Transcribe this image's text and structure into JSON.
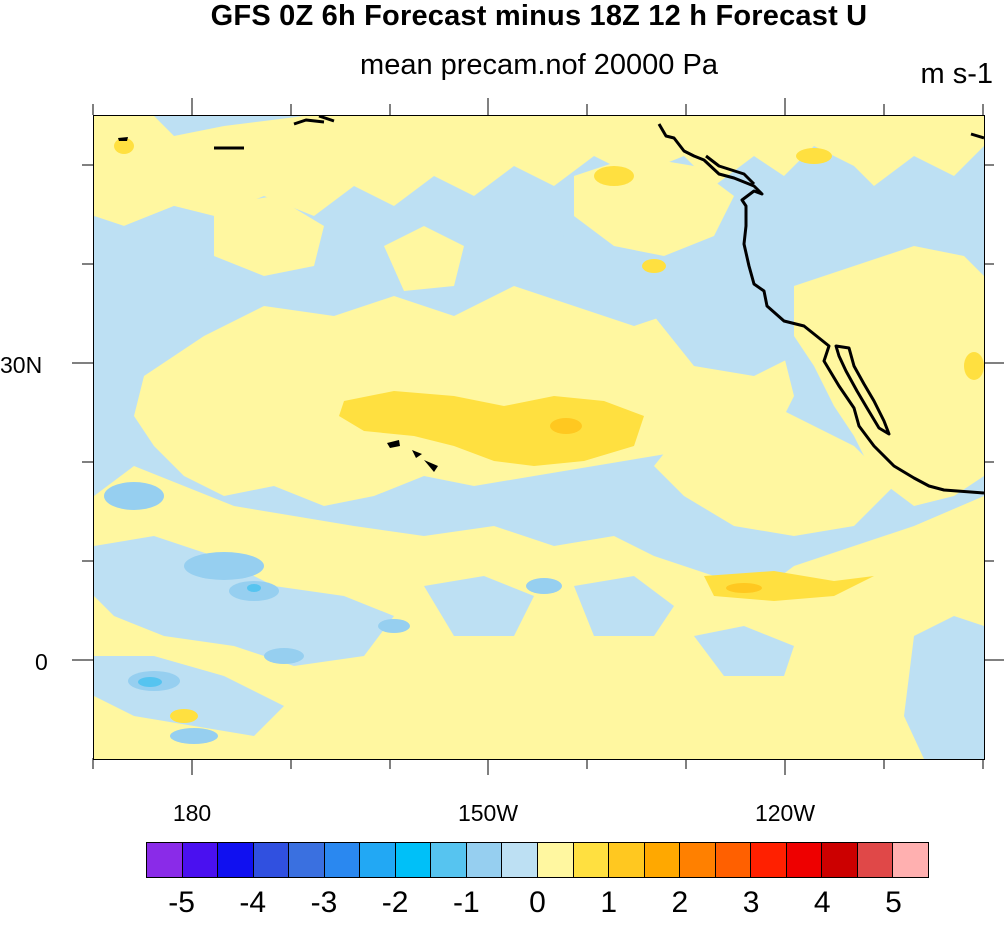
{
  "title": "GFS 0Z 6h Forecast minus 18Z 12 h Forecast U",
  "subtitle": "mean precam.nof 20000 Pa",
  "units": "m s-1",
  "lat_labels": [
    "30N",
    "0"
  ],
  "lon_labels": [
    "180",
    "150W",
    "120W"
  ],
  "colorbar": {
    "colors": [
      "#8a2be8",
      "#4a10f0",
      "#1010f0",
      "#3050e0",
      "#3a70e0",
      "#2a88f0",
      "#22a8f4",
      "#00c0f8",
      "#56c4f0",
      "#96cff0",
      "#bde0f3",
      "#fff7a0",
      "#ffe040",
      "#ffc820",
      "#ffa800",
      "#ff8000",
      "#ff6000",
      "#ff2000",
      "#ee0000",
      "#cc0000",
      "#e04848",
      "#ffb0b0"
    ],
    "labels": [
      "-5",
      "-4",
      "-3",
      "-2",
      "-1",
      "0",
      "1",
      "2",
      "3",
      "4",
      "5"
    ]
  },
  "fields": {
    "neutral_color": "#bde0f3",
    "positive_color": "#fff7a0",
    "strong_positive_color": "#ffe040",
    "strongest_positive_color": "#ffc820",
    "negative_color": "#96cff0",
    "strong_negative_color": "#56c4f0"
  }
}
